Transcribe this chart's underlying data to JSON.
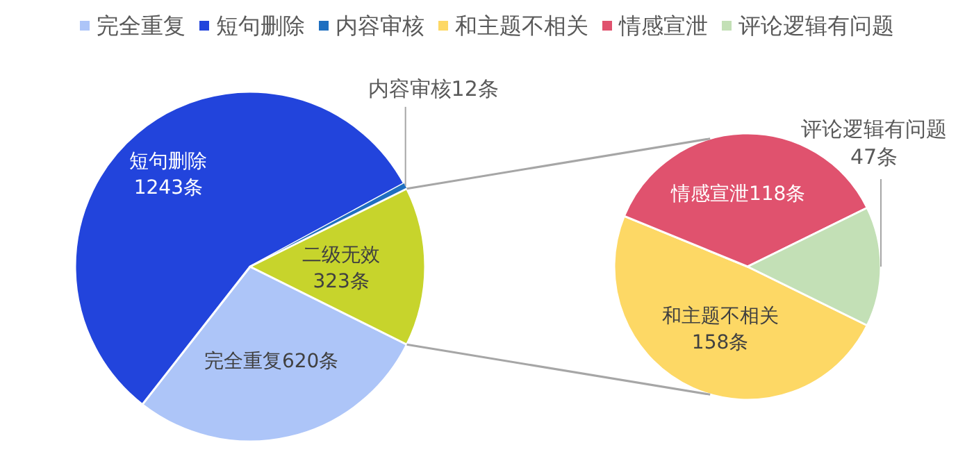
{
  "chart_data": [
    {
      "type": "pie",
      "categories": [
        "完全重复",
        "短句删除",
        "内容审核",
        "二级无效"
      ],
      "values": [
        620,
        1243,
        12,
        323
      ],
      "colors": [
        "#adc5f8",
        "#2244dc",
        "#1f6fc0",
        "#c7d42c"
      ],
      "value_labels": [
        "620条",
        "1243条",
        "12条",
        "323条"
      ],
      "legend": "top"
    },
    {
      "type": "pie",
      "categories": [
        "和主题不相关",
        "情感宣泄",
        "评论逻辑有问题"
      ],
      "values": [
        158,
        118,
        47
      ],
      "colors": [
        "#fdd865",
        "#e0526e",
        "#c3e0b6"
      ],
      "value_labels": [
        "158条",
        "118条",
        "47条"
      ],
      "legend": "top"
    }
  ]
}
